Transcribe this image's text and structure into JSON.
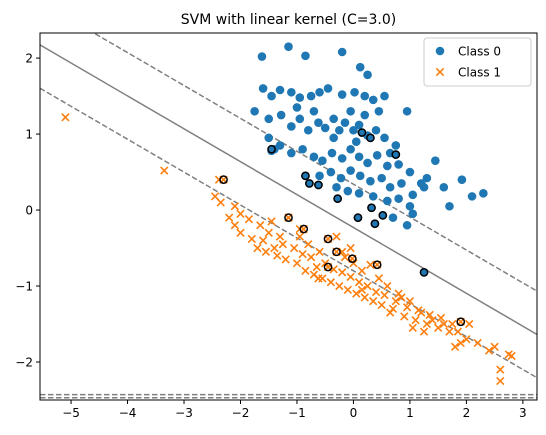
{
  "chart_data": {
    "type": "scatter",
    "title": "SVM with linear kernel (C=3.0)",
    "xlabel": "",
    "ylabel": "",
    "xlim": [
      -5.55,
      3.25
    ],
    "ylim": [
      -2.5,
      2.33
    ],
    "xticks": [
      -5,
      -4,
      -3,
      -2,
      -1,
      0,
      1,
      2,
      3
    ],
    "xtick_labels": [
      "−5",
      "−4",
      "−3",
      "−2",
      "−1",
      "0",
      "1",
      "2",
      "3"
    ],
    "yticks": [
      -2,
      -1,
      0,
      1,
      2
    ],
    "ytick_labels": [
      "−2",
      "−1",
      "0",
      "1",
      "2"
    ],
    "legend": {
      "placement": "top-right"
    },
    "decision_boundary": {
      "slope": -0.433,
      "intercept": -0.23,
      "color": "#808080",
      "style": "solid"
    },
    "margins": [
      {
        "slope": -0.433,
        "intercept": 0.34,
        "color": "#808080",
        "style": "dashed"
      },
      {
        "slope": -0.433,
        "intercept": -0.8,
        "color": "#808080",
        "style": "dashed"
      }
    ],
    "extra_dashed_lines": [
      {
        "y": -2.43
      },
      {
        "y": -2.47
      }
    ],
    "support_vector_style": {
      "edge": "#000000",
      "fill": "none"
    },
    "series": [
      {
        "name": "Class 0",
        "marker": "circle",
        "color": "#1f77b4",
        "points": [
          [
            -1.62,
            2.02
          ],
          [
            -1.15,
            2.15
          ],
          [
            -0.85,
            2.03
          ],
          [
            -0.2,
            2.08
          ],
          [
            0.12,
            1.88
          ],
          [
            0.25,
            1.78
          ],
          [
            -1.6,
            1.6
          ],
          [
            -1.45,
            1.5
          ],
          [
            -1.3,
            1.58
          ],
          [
            -1.1,
            1.55
          ],
          [
            -0.95,
            1.48
          ],
          [
            -0.75,
            1.5
          ],
          [
            -0.6,
            1.55
          ],
          [
            -0.45,
            1.6
          ],
          [
            -0.2,
            1.52
          ],
          [
            0.02,
            1.55
          ],
          [
            0.2,
            1.5
          ],
          [
            0.35,
            1.45
          ],
          [
            0.55,
            1.5
          ],
          [
            -1.75,
            1.3
          ],
          [
            -1.5,
            1.2
          ],
          [
            -1.28,
            1.25
          ],
          [
            -1.1,
            1.1
          ],
          [
            -0.95,
            1.2
          ],
          [
            -0.8,
            1.05
          ],
          [
            -0.62,
            1.15
          ],
          [
            -0.5,
            1.08
          ],
          [
            -0.35,
            1.2
          ],
          [
            -0.25,
            1.05
          ],
          [
            -0.15,
            1.15
          ],
          [
            0.0,
            1.05
          ],
          [
            0.1,
            1.12
          ],
          [
            0.25,
            0.98
          ],
          [
            0.4,
            1.05
          ],
          [
            0.55,
            0.95
          ],
          [
            0.75,
            0.85
          ],
          [
            0.95,
            1.3
          ],
          [
            -1.5,
            0.95
          ],
          [
            -1.3,
            0.85
          ],
          [
            -1.1,
            0.75
          ],
          [
            -0.9,
            0.8
          ],
          [
            -0.7,
            0.7
          ],
          [
            -0.55,
            0.65
          ],
          [
            -0.38,
            0.75
          ],
          [
            -0.2,
            0.68
          ],
          [
            -0.05,
            0.8
          ],
          [
            0.1,
            0.7
          ],
          [
            0.25,
            0.62
          ],
          [
            0.42,
            0.72
          ],
          [
            0.6,
            0.58
          ],
          [
            0.8,
            0.6
          ],
          [
            1.0,
            0.5
          ],
          [
            1.3,
            0.42
          ],
          [
            1.45,
            0.65
          ],
          [
            -0.6,
            0.45
          ],
          [
            -0.4,
            0.5
          ],
          [
            -0.22,
            0.42
          ],
          [
            -0.05,
            0.52
          ],
          [
            0.12,
            0.45
          ],
          [
            0.3,
            0.38
          ],
          [
            0.5,
            0.42
          ],
          [
            0.65,
            0.3
          ],
          [
            0.85,
            0.35
          ],
          [
            1.05,
            0.2
          ],
          [
            1.2,
            0.35
          ],
          [
            1.6,
            0.3
          ],
          [
            1.92,
            0.4
          ],
          [
            2.3,
            0.22
          ],
          [
            -0.3,
            0.3
          ],
          [
            -0.1,
            0.25
          ],
          [
            0.1,
            0.22
          ],
          [
            0.35,
            0.18
          ],
          [
            0.6,
            0.12
          ],
          [
            0.8,
            0.15
          ],
          [
            1.0,
            0.05
          ],
          [
            1.25,
            0.3
          ],
          [
            0.7,
            -0.1
          ],
          [
            1.05,
            -0.05
          ],
          [
            1.7,
            0.05
          ],
          [
            2.1,
            0.18
          ],
          [
            0.95,
            -0.2
          ],
          [
            -0.05,
            1.3
          ],
          [
            0.2,
            1.25
          ],
          [
            0.45,
            1.3
          ],
          [
            -0.7,
            1.3
          ],
          [
            -1.0,
            1.35
          ],
          [
            -1.4,
            0.8
          ],
          [
            -0.35,
            0.95
          ],
          [
            0.05,
            0.9
          ],
          [
            0.65,
            0.75
          ],
          [
            -1.45,
            0.78
          ],
          [
            -0.85,
            0.45
          ],
          [
            -0.78,
            0.35
          ],
          [
            -0.62,
            0.33
          ],
          [
            -0.28,
            0.15
          ],
          [
            0.08,
            -0.1
          ],
          [
            0.32,
            0.03
          ],
          [
            0.38,
            -0.18
          ],
          [
            0.52,
            -0.07
          ],
          [
            0.75,
            0.73
          ],
          [
            0.3,
            0.95
          ],
          [
            0.15,
            1.02
          ],
          [
            1.25,
            -0.82
          ]
        ]
      },
      {
        "name": "Class 1",
        "marker": "x",
        "color": "#ff7f0e",
        "points": [
          [
            -5.1,
            1.22
          ],
          [
            -3.35,
            0.52
          ],
          [
            -2.38,
            0.4
          ],
          [
            -2.45,
            0.18
          ],
          [
            -2.35,
            0.1
          ],
          [
            -2.1,
            0.05
          ],
          [
            -2.0,
            -0.05
          ],
          [
            -1.85,
            -0.12
          ],
          [
            -1.65,
            -0.2
          ],
          [
            -1.5,
            -0.3
          ],
          [
            -1.3,
            -0.35
          ],
          [
            -1.15,
            -0.1
          ],
          [
            -0.95,
            -0.25
          ],
          [
            -0.8,
            -0.45
          ],
          [
            -0.6,
            -0.55
          ],
          [
            -0.45,
            -0.38
          ],
          [
            -0.3,
            -0.55
          ],
          [
            -0.15,
            -0.62
          ],
          [
            0.0,
            -0.7
          ],
          [
            0.15,
            -0.8
          ],
          [
            0.3,
            -0.72
          ],
          [
            0.45,
            -0.9
          ],
          [
            0.6,
            -1.0
          ],
          [
            0.8,
            -1.1
          ],
          [
            1.0,
            -1.2
          ],
          [
            1.2,
            -1.35
          ],
          [
            1.4,
            -1.45
          ],
          [
            1.6,
            -1.5
          ],
          [
            1.85,
            -1.6
          ],
          [
            2.0,
            -1.7
          ],
          [
            2.2,
            -1.75
          ],
          [
            2.4,
            -1.85
          ],
          [
            2.6,
            -2.1
          ],
          [
            2.6,
            -2.25
          ],
          [
            2.75,
            -1.9
          ],
          [
            2.8,
            -1.92
          ],
          [
            -2.2,
            -0.1
          ],
          [
            -2.0,
            -0.3
          ],
          [
            -1.8,
            -0.38
          ],
          [
            -1.7,
            -0.5
          ],
          [
            -1.55,
            -0.55
          ],
          [
            -1.35,
            -0.6
          ],
          [
            -1.2,
            -0.65
          ],
          [
            -1.0,
            -0.7
          ],
          [
            -0.85,
            -0.8
          ],
          [
            -0.7,
            -0.85
          ],
          [
            -0.55,
            -0.9
          ],
          [
            -0.4,
            -0.95
          ],
          [
            -0.25,
            -1.0
          ],
          [
            -0.1,
            -1.05
          ],
          [
            0.05,
            -1.1
          ],
          [
            0.2,
            -1.15
          ],
          [
            0.35,
            -1.2
          ],
          [
            0.5,
            -1.25
          ],
          [
            0.7,
            -1.3
          ],
          [
            0.9,
            -1.4
          ],
          [
            1.1,
            -1.45
          ],
          [
            1.3,
            -1.5
          ],
          [
            1.5,
            -1.55
          ],
          [
            1.7,
            -1.6
          ],
          [
            1.9,
            -1.75
          ],
          [
            -1.25,
            -0.45
          ],
          [
            -1.05,
            -0.5
          ],
          [
            -0.9,
            -0.58
          ],
          [
            -0.75,
            -0.62
          ],
          [
            -0.5,
            -0.7
          ],
          [
            -0.35,
            -0.78
          ],
          [
            -0.2,
            -0.82
          ],
          [
            -0.05,
            -0.88
          ],
          [
            0.1,
            -0.95
          ],
          [
            0.25,
            -1.0
          ],
          [
            0.4,
            -1.08
          ],
          [
            0.55,
            -1.12
          ],
          [
            0.75,
            -1.2
          ],
          [
            0.95,
            -1.28
          ],
          [
            1.15,
            -1.32
          ],
          [
            1.35,
            -1.38
          ],
          [
            1.55,
            -1.42
          ],
          [
            1.75,
            -1.5
          ],
          [
            -1.6,
            -0.4
          ],
          [
            -1.4,
            -0.5
          ],
          [
            -0.65,
            -0.75
          ],
          [
            0.15,
            -1.05
          ],
          [
            0.65,
            -1.35
          ],
          [
            1.05,
            -1.55
          ],
          [
            -2.1,
            -0.2
          ],
          [
            -0.95,
            -0.35
          ],
          [
            0.85,
            -1.15
          ],
          [
            1.25,
            -1.6
          ],
          [
            2.05,
            -1.5
          ],
          [
            1.8,
            -1.8
          ],
          [
            -0.3,
            -0.35
          ],
          [
            -0.05,
            -0.5
          ],
          [
            -1.45,
            -0.15
          ],
          [
            2.5,
            -1.8
          ],
          [
            -0.45,
            -0.75
          ],
          [
            -0.2,
            -0.55
          ],
          [
            -0.02,
            -0.64
          ],
          [
            0.42,
            -0.72
          ],
          [
            -1.15,
            -0.1
          ],
          [
            -0.88,
            -0.25
          ],
          [
            -2.3,
            0.4
          ],
          [
            1.9,
            -1.47
          ],
          [
            -0.62,
            -0.9
          ]
        ]
      }
    ],
    "support_vectors": [
      [
        -1.45,
        0.8
      ],
      [
        -0.85,
        0.45
      ],
      [
        -0.78,
        0.35
      ],
      [
        -0.62,
        0.33
      ],
      [
        -0.28,
        0.15
      ],
      [
        0.08,
        -0.1
      ],
      [
        0.32,
        0.03
      ],
      [
        0.38,
        -0.18
      ],
      [
        0.52,
        -0.07
      ],
      [
        0.75,
        0.73
      ],
      [
        0.3,
        0.95
      ],
      [
        0.15,
        1.02
      ],
      [
        1.25,
        -0.82
      ],
      [
        -2.3,
        0.4
      ],
      [
        -1.15,
        -0.1
      ],
      [
        -0.88,
        -0.25
      ],
      [
        -0.45,
        -0.38
      ],
      [
        -0.3,
        -0.55
      ],
      [
        -0.02,
        -0.64
      ],
      [
        0.42,
        -0.72
      ],
      [
        -0.45,
        -0.75
      ],
      [
        1.9,
        -1.47
      ]
    ]
  }
}
